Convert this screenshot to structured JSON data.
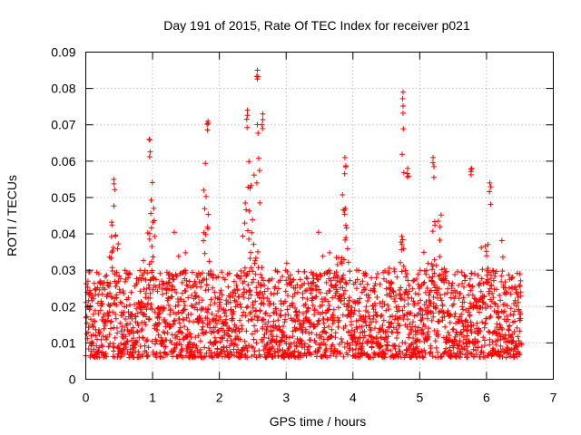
{
  "chart_data": {
    "type": "scatter",
    "title": "Day 191 of 2015, Rate Of TEC Index for receiver p021",
    "xlabel": "GPS time / hours",
    "ylabel": "ROTI / TECUs",
    "xlim": [
      0,
      7
    ],
    "ylim": [
      0,
      0.09
    ],
    "x_ticks": [
      "0",
      "1",
      "2",
      "3",
      "4",
      "5",
      "6",
      "7"
    ],
    "y_ticks": [
      "0",
      "0.01",
      "0.02",
      "0.03",
      "0.04",
      "0.05",
      "0.06",
      "0.07",
      "0.08",
      "0.09"
    ],
    "grid": true,
    "marker": "+",
    "color": "#ff0000",
    "x_range_of_data": [
      0.0,
      6.52
    ],
    "baseline_band": [
      0.006,
      0.03
    ],
    "peaks": [
      {
        "x": 0.42,
        "y": 0.055
      },
      {
        "x": 0.95,
        "y": 0.066
      },
      {
        "x": 1.83,
        "y": 0.071
      },
      {
        "x": 2.42,
        "y": 0.074
      },
      {
        "x": 2.57,
        "y": 0.085
      },
      {
        "x": 2.65,
        "y": 0.073
      },
      {
        "x": 3.88,
        "y": 0.061
      },
      {
        "x": 4.75,
        "y": 0.079
      },
      {
        "x": 4.82,
        "y": 0.058
      },
      {
        "x": 5.2,
        "y": 0.061
      },
      {
        "x": 5.78,
        "y": 0.058
      },
      {
        "x": 6.05,
        "y": 0.054
      },
      {
        "x": 6.5,
        "y": 0.029
      }
    ],
    "burst_regions": [
      {
        "center": 0.42,
        "width": 0.12,
        "amp": 0.032
      },
      {
        "center": 0.98,
        "width": 0.1,
        "amp": 0.042
      },
      {
        "center": 1.8,
        "width": 0.08,
        "amp": 0.045
      },
      {
        "center": 2.45,
        "width": 0.18,
        "amp": 0.045
      },
      {
        "center": 2.58,
        "width": 0.06,
        "amp": 0.058
      },
      {
        "center": 3.85,
        "width": 0.15,
        "amp": 0.036
      },
      {
        "center": 4.75,
        "width": 0.06,
        "amp": 0.055
      },
      {
        "center": 5.25,
        "width": 0.25,
        "amp": 0.03
      },
      {
        "center": 6.0,
        "width": 0.12,
        "amp": 0.028
      }
    ],
    "n_points": 2600
  }
}
